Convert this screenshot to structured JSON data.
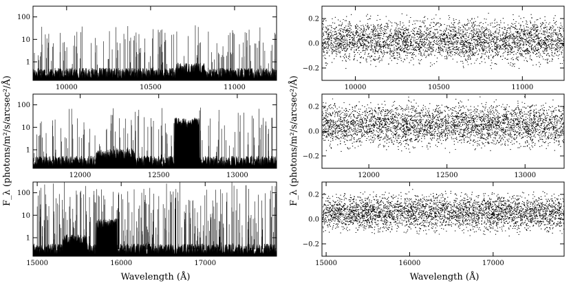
{
  "figure": {
    "xlabel": "Wavelength (Å)",
    "ylabel": "F_λ (photons/m²/s/arcsec²/Å)"
  },
  "chart_data": [
    {
      "type": "line",
      "panel": "left-top",
      "xlim": [
        9800,
        11250
      ],
      "ylim": [
        0.15,
        300
      ],
      "yscale": "log",
      "xticks": [
        10000,
        10500,
        11000
      ],
      "xtick_labels": [
        "10000",
        "10500",
        "11000"
      ],
      "yticks": [
        1,
        10,
        100
      ],
      "ytick_labels": [
        "1",
        "10",
        "100"
      ],
      "series": [
        {
          "x_range": [
            9800,
            11250
          ],
          "baseline": 0.3,
          "peak_max": 45,
          "line_density": "moderate",
          "features": [
            {
              "x_range": [
                10650,
                10820
              ],
              "level": 0.5
            }
          ]
        }
      ]
    },
    {
      "type": "line",
      "panel": "left-middle",
      "xlim": [
        11700,
        13250
      ],
      "ylim": [
        0.15,
        300
      ],
      "yscale": "log",
      "xticks": [
        12000,
        12500,
        13000
      ],
      "xtick_labels": [
        "12000",
        "12500",
        "13000"
      ],
      "yticks": [
        1,
        10,
        100
      ],
      "ytick_labels": [
        "1",
        "10",
        "100"
      ],
      "series": [
        {
          "x_range": [
            11700,
            13250
          ],
          "baseline": 0.3,
          "peak_max": 80,
          "line_density": "moderate",
          "features": [
            {
              "x_range": [
                12600,
                12760
              ],
              "level": 15
            },
            {
              "x_range": [
                12100,
                12350
              ],
              "level": 0.6
            }
          ]
        }
      ]
    },
    {
      "type": "line",
      "panel": "left-bottom",
      "xlim": [
        14950,
        17850
      ],
      "ylim": [
        0.15,
        300
      ],
      "yscale": "log",
      "xticks": [
        15000,
        16000,
        17000
      ],
      "xtick_labels": [
        "15000",
        "16000",
        "17000"
      ],
      "yticks": [
        1,
        10,
        100
      ],
      "ytick_labels": [
        "1",
        "10",
        "100"
      ],
      "series": [
        {
          "x_range": [
            14950,
            17850
          ],
          "baseline": 0.3,
          "peak_max": 300,
          "line_density": "dense",
          "features": [
            {
              "x_range": [
                15700,
                15950
              ],
              "level": 4
            },
            {
              "x_range": [
                15300,
                15600
              ],
              "level": 0.8
            }
          ]
        }
      ]
    },
    {
      "type": "scatter",
      "panel": "right-top",
      "xlim": [
        9800,
        11250
      ],
      "ylim": [
        -0.3,
        0.3
      ],
      "xticks": [
        10000,
        10500,
        11000
      ],
      "xtick_labels": [
        "10000",
        "10500",
        "11000"
      ],
      "yticks": [
        -0.2,
        0,
        0.2
      ],
      "ytick_labels": [
        "−0.2",
        "0.0",
        "0.2"
      ],
      "series": [
        {
          "x_range": [
            9800,
            11250
          ],
          "y_center": 0.02,
          "y_spread": 0.12,
          "density": "high"
        }
      ]
    },
    {
      "type": "scatter",
      "panel": "right-middle",
      "xlim": [
        11700,
        13250
      ],
      "ylim": [
        -0.3,
        0.3
      ],
      "xticks": [
        12000,
        12500,
        13000
      ],
      "xtick_labels": [
        "12000",
        "12500",
        "13000"
      ],
      "yticks": [
        -0.2,
        0,
        0.2
      ],
      "ytick_labels": [
        "−0.2",
        "0.0",
        "0.2"
      ],
      "series": [
        {
          "x_range": [
            11700,
            13250
          ],
          "y_center": 0.05,
          "y_spread": 0.12,
          "density": "high"
        }
      ]
    },
    {
      "type": "scatter",
      "panel": "right-bottom",
      "xlim": [
        14950,
        17850
      ],
      "ylim": [
        -0.3,
        0.3
      ],
      "xticks": [
        15000,
        16000,
        17000
      ],
      "xtick_labels": [
        "15000",
        "16000",
        "17000"
      ],
      "yticks": [
        -0.2,
        0,
        0.2
      ],
      "ytick_labels": [
        "−0.2",
        "0.0",
        "0.2"
      ],
      "series": [
        {
          "x_range": [
            14950,
            17850
          ],
          "y_center": 0.05,
          "y_spread": 0.1,
          "density": "high"
        }
      ]
    }
  ]
}
